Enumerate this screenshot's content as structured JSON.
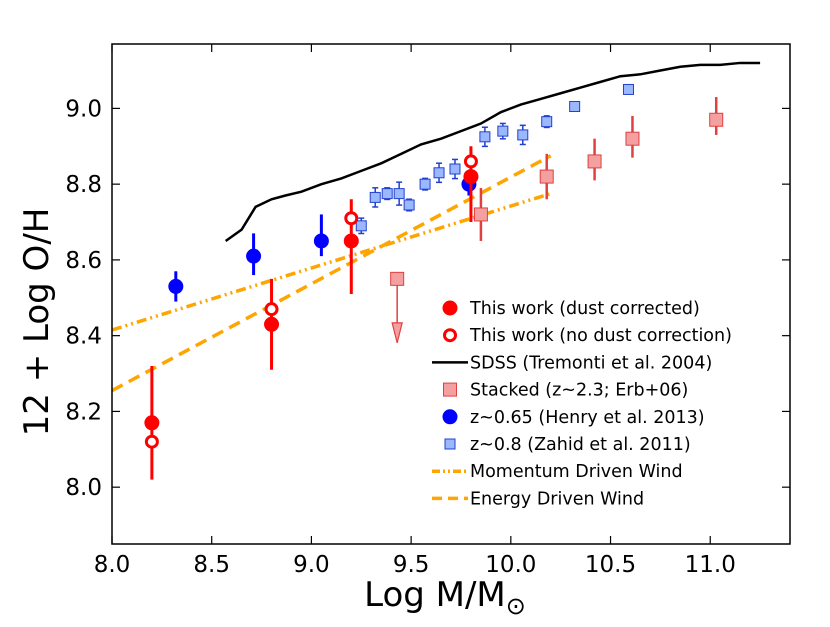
{
  "chart_data": {
    "type": "scatter",
    "title": "",
    "xlabel": "Log M/M",
    "xlabel_symbol": "⊙",
    "ylabel": "12 + Log O/H",
    "xlim": [
      8.0,
      11.4
    ],
    "ylim": [
      7.85,
      9.17
    ],
    "xticks": [
      "8.0",
      "8.5",
      "9.0",
      "9.5",
      "10.0",
      "10.5",
      "11.0"
    ],
    "yticks": [
      "8.0",
      "8.2",
      "8.4",
      "8.6",
      "8.8",
      "9.0"
    ],
    "xtick_values": [
      8.0,
      8.5,
      9.0,
      9.5,
      10.0,
      10.5,
      11.0
    ],
    "ytick_values": [
      8.0,
      8.2,
      8.4,
      8.6,
      8.8,
      9.0
    ],
    "legend_position": "bottom-right",
    "series": [
      {
        "name": "This work (dust corrected)",
        "marker": "filled-circle",
        "color": "#ff0000",
        "points": [
          {
            "x": 8.2,
            "y": 8.17,
            "err_lo": 0.15,
            "err_hi": 0.15
          },
          {
            "x": 8.8,
            "y": 8.43,
            "err_lo": 0.12,
            "err_hi": 0.12
          },
          {
            "x": 9.2,
            "y": 8.65,
            "err_lo": 0.14,
            "err_hi": 0.11
          },
          {
            "x": 9.8,
            "y": 8.82,
            "err_lo": 0.12,
            "err_hi": 0.08
          }
        ]
      },
      {
        "name": "This work (no dust correction)",
        "marker": "open-circle",
        "color": "#ff0000",
        "points": [
          {
            "x": 8.2,
            "y": 8.12
          },
          {
            "x": 8.8,
            "y": 8.47
          },
          {
            "x": 9.2,
            "y": 8.71
          },
          {
            "x": 9.8,
            "y": 8.86
          }
        ]
      },
      {
        "name": "SDSS (Tremonti et al. 2004)",
        "marker": "line",
        "color": "#000000",
        "x": [
          8.57,
          8.65,
          8.72,
          8.8,
          8.87,
          8.95,
          9.05,
          9.15,
          9.25,
          9.35,
          9.45,
          9.55,
          9.65,
          9.75,
          9.85,
          9.95,
          10.05,
          10.15,
          10.25,
          10.35,
          10.45,
          10.55,
          10.65,
          10.75,
          10.85,
          10.95,
          11.05,
          11.15,
          11.25
        ],
        "y": [
          8.65,
          8.68,
          8.74,
          8.76,
          8.77,
          8.78,
          8.8,
          8.815,
          8.835,
          8.855,
          8.88,
          8.905,
          8.92,
          8.94,
          8.96,
          8.99,
          9.01,
          9.025,
          9.04,
          9.055,
          9.07,
          9.085,
          9.09,
          9.1,
          9.11,
          9.115,
          9.115,
          9.12,
          9.12
        ]
      },
      {
        "name": "Stacked (z~2.3; Erb+06)",
        "marker": "square",
        "color": "#f4a0a0",
        "edge": "#e04040",
        "points": [
          {
            "x": 9.43,
            "y": 8.55,
            "upper_limit": true
          },
          {
            "x": 9.85,
            "y": 8.72,
            "err_lo": 0.07,
            "err_hi": 0.07
          },
          {
            "x": 10.18,
            "y": 8.82,
            "err_lo": 0.06,
            "err_hi": 0.06
          },
          {
            "x": 10.42,
            "y": 8.86,
            "err_lo": 0.05,
            "err_hi": 0.06
          },
          {
            "x": 10.61,
            "y": 8.92,
            "err_lo": 0.05,
            "err_hi": 0.06
          },
          {
            "x": 11.03,
            "y": 8.97,
            "err_lo": 0.04,
            "err_hi": 0.06
          }
        ]
      },
      {
        "name": "z~0.65 (Henry et al. 2013)",
        "marker": "filled-circle",
        "color": "#0000ff",
        "points": [
          {
            "x": 8.32,
            "y": 8.53,
            "err_lo": 0.04,
            "err_hi": 0.04
          },
          {
            "x": 8.71,
            "y": 8.61,
            "err_lo": 0.05,
            "err_hi": 0.06
          },
          {
            "x": 9.05,
            "y": 8.65,
            "err_lo": 0.04,
            "err_hi": 0.07
          },
          {
            "x": 9.79,
            "y": 8.8,
            "err_lo": 0.03,
            "err_hi": 0.03
          }
        ]
      },
      {
        "name": "z~0.8 (Zahid et al. 2011)",
        "marker": "square",
        "color": "#9bb8ff",
        "edge": "#2040d0",
        "points": [
          {
            "x": 9.25,
            "y": 8.69,
            "err_lo": 0.015,
            "err_hi": 0.015
          },
          {
            "x": 9.32,
            "y": 8.765,
            "err_lo": 0.02,
            "err_hi": 0.02
          },
          {
            "x": 9.38,
            "y": 8.775,
            "err_lo": 0.01,
            "err_hi": 0.01
          },
          {
            "x": 9.44,
            "y": 8.775,
            "err_lo": 0.025,
            "err_hi": 0.025
          },
          {
            "x": 9.49,
            "y": 8.745,
            "err_lo": 0.01,
            "err_hi": 0.01
          },
          {
            "x": 9.57,
            "y": 8.8,
            "err_lo": 0.01,
            "err_hi": 0.01
          },
          {
            "x": 9.64,
            "y": 8.83,
            "err_lo": 0.02,
            "err_hi": 0.02
          },
          {
            "x": 9.72,
            "y": 8.84,
            "err_lo": 0.02,
            "err_hi": 0.02
          },
          {
            "x": 9.87,
            "y": 8.925,
            "err_lo": 0.02,
            "err_hi": 0.02
          },
          {
            "x": 9.96,
            "y": 8.94,
            "err_lo": 0.015,
            "err_hi": 0.015
          },
          {
            "x": 10.06,
            "y": 8.93,
            "err_lo": 0.02,
            "err_hi": 0.02
          },
          {
            "x": 10.18,
            "y": 8.965,
            "err_lo": 0.01,
            "err_hi": 0.01
          },
          {
            "x": 10.32,
            "y": 9.005,
            "err_lo": 0.005,
            "err_hi": 0.005
          },
          {
            "x": 10.59,
            "y": 9.05,
            "err_lo": 0.005,
            "err_hi": 0.005
          }
        ]
      },
      {
        "name": "Momentum Driven Wind",
        "marker": "dashdot-line",
        "color": "#ffa500",
        "x": [
          8.0,
          10.2
        ],
        "y": [
          8.415,
          8.775
        ]
      },
      {
        "name": "Energy Driven Wind",
        "marker": "dashed-line",
        "color": "#ffa500",
        "x": [
          8.0,
          10.2
        ],
        "y": [
          8.255,
          8.875
        ]
      }
    ]
  }
}
